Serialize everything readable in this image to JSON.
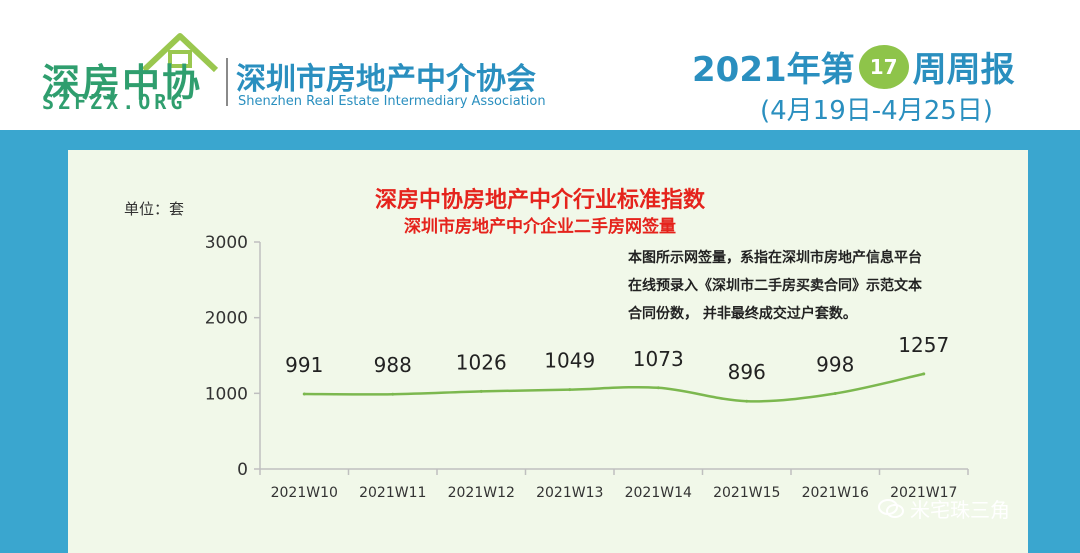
{
  "header": {
    "logo_cn": "深房中协",
    "logo_en": "SZFZX.ORG",
    "assoc_cn": "深圳市房地产中介协会",
    "assoc_en": "Shenzhen Real Estate Intermediary Association",
    "report_prefix": "2021年第",
    "week_number": "17",
    "report_suffix": "周周报",
    "date_range": "(4月19日-4月25日)"
  },
  "colors": {
    "accent": "#3aa6cf",
    "brand_green": "#2f9e6e",
    "title_red": "#e5231c",
    "line": "#7cb84f",
    "panel": "#f1f8e9"
  },
  "unit_label": "单位：套",
  "note": [
    "本图所示网签量，系指在深圳市房地产信息平台",
    "在线预录入《深圳市二手房买卖合同》示范文本",
    "合同份数， 并非最终成交过户套数。"
  ],
  "watermark": "米宅珠三角",
  "chart_data": {
    "type": "line",
    "title": "深房中协房地产中介行业标准指数",
    "subtitle": "深圳市房地产中介企业二手房网签量",
    "ylabel": "单位：套",
    "xlabel": "",
    "categories": [
      "2021W10",
      "2021W11",
      "2021W12",
      "2021W13",
      "2021W14",
      "2021W15",
      "2021W16",
      "2021W17"
    ],
    "values": [
      991,
      988,
      1026,
      1049,
      1073,
      896,
      998,
      1257
    ],
    "value_labels": [
      "991",
      "988",
      "1026",
      "1049",
      "1073",
      "896",
      "998",
      "1257"
    ],
    "ylim": [
      0,
      3000
    ],
    "yticks": [
      "0",
      "1000",
      "2000",
      "3000"
    ],
    "grid": false,
    "legend": "none"
  }
}
